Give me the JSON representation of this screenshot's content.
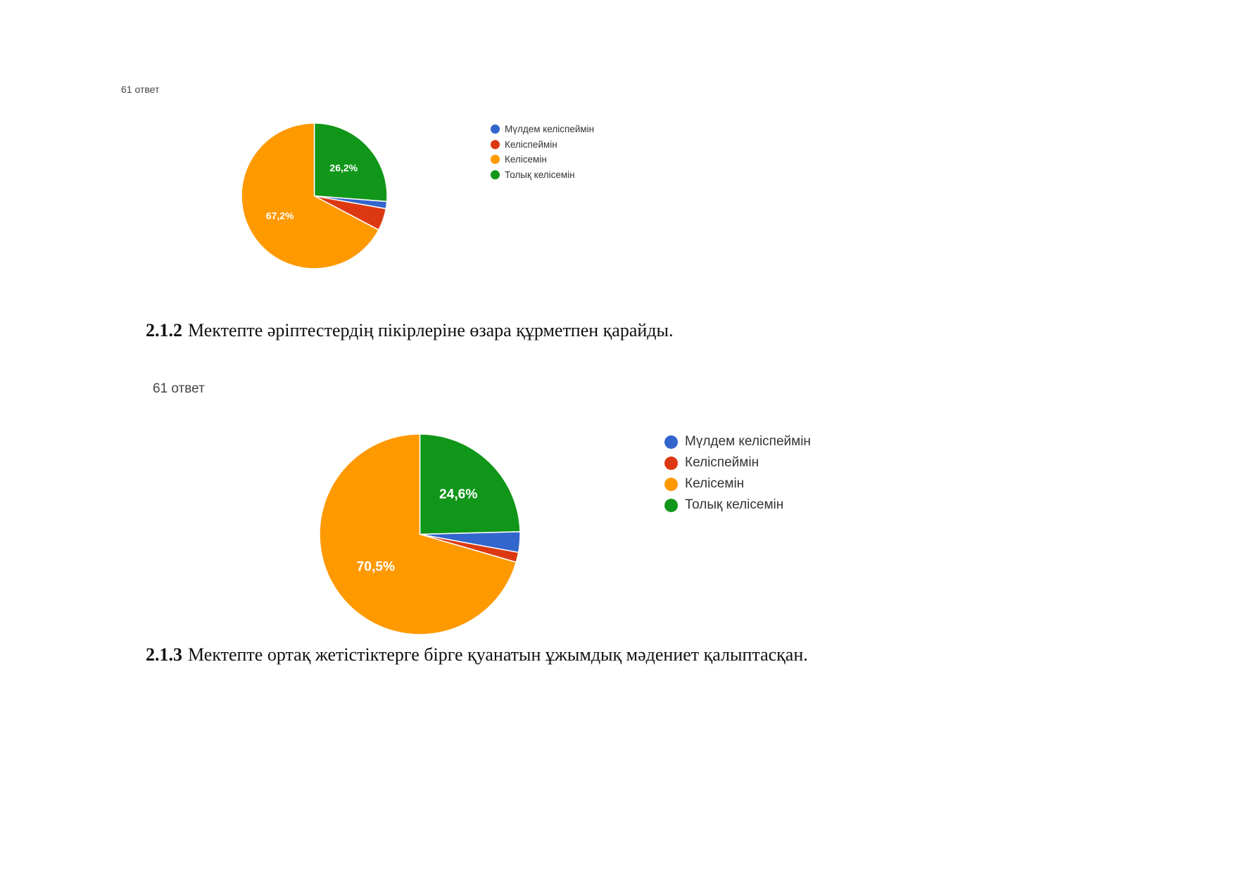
{
  "legend_colors": [
    "#3366cc",
    "#dc3912",
    "#ff9900",
    "#109618"
  ],
  "questions": [
    {
      "number": "2.1.2",
      "text": "Мектепте әріптестердің пікірлеріне өзара құрметпен қарайды."
    },
    {
      "number": "2.1.3",
      "text": "Мектепте ортақ жетістіктерге бірге қуанатын ұжымдық мәдениет қалыптасқан."
    }
  ],
  "chart_data": [
    {
      "type": "pie",
      "responses_label": "61 ответ",
      "categories": [
        "Мүлдем келіспеймін",
        "Келіспеймін",
        "Келісемін",
        "Толық келісемін"
      ],
      "values": [
        1.6,
        4.9,
        67.2,
        26.2
      ],
      "data_labels": [
        "",
        "",
        "67,2%",
        "26,2%"
      ],
      "legend_position": "right"
    },
    {
      "type": "pie",
      "responses_label": "61 ответ",
      "categories": [
        "Мүлдем келіспеймін",
        "Келіспеймін",
        "Келісемін",
        "Толық келісемін"
      ],
      "values": [
        3.3,
        1.6,
        70.5,
        24.6
      ],
      "data_labels": [
        "",
        "",
        "70,5%",
        "24,6%"
      ],
      "legend_position": "right"
    }
  ]
}
